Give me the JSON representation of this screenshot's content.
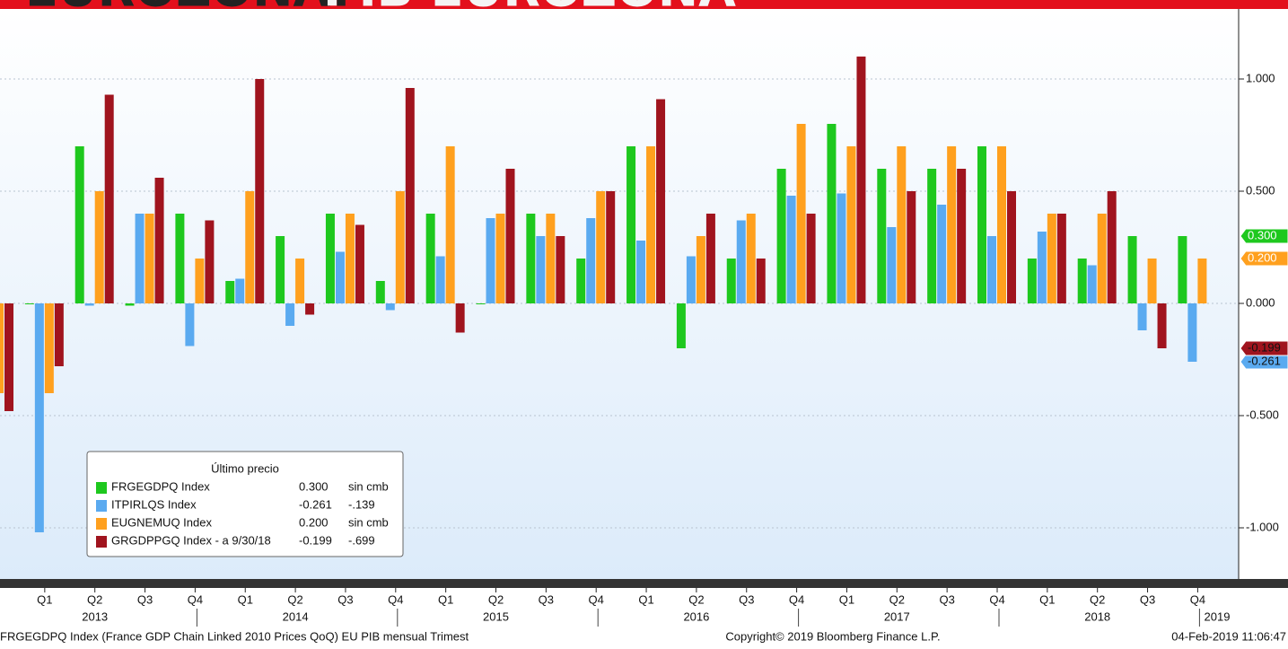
{
  "chart_data": {
    "type": "bar",
    "title": "EUROZONA:",
    "subtitle": "PIB EUROZONA",
    "categories": [
      null,
      "Q1",
      "Q2",
      "Q3",
      "Q4",
      "Q1",
      "Q2",
      "Q3",
      "Q4",
      "Q1",
      "Q2",
      "Q3",
      "Q4",
      "Q1",
      "Q2",
      "Q3",
      "Q4",
      "Q1",
      "Q2",
      "Q3",
      "Q4",
      "Q1",
      "Q2",
      "Q3",
      "Q4"
    ],
    "years": [
      "2013",
      "2014",
      "2015",
      "2016",
      "2017",
      "2018",
      "2019"
    ],
    "series": [
      {
        "name": "FRGEGDPQ Index",
        "color": "#1ec81e",
        "last": "0.300",
        "change": "sin cmb",
        "values": [
          null,
          0.0,
          0.7,
          -0.01,
          0.4,
          0.1,
          0.3,
          0.4,
          0.1,
          0.4,
          0.0,
          0.4,
          0.2,
          0.7,
          -0.2,
          0.2,
          0.6,
          0.8,
          0.6,
          0.6,
          0.7,
          0.2,
          0.2,
          0.3,
          0.3
        ]
      },
      {
        "name": "ITPIRLQS Index",
        "color": "#5aaaf0",
        "last": "-0.261",
        "change": "-.139",
        "values": [
          null,
          -1.02,
          -0.01,
          0.4,
          -0.19,
          0.11,
          -0.1,
          0.23,
          -0.03,
          0.21,
          0.38,
          0.3,
          0.38,
          0.28,
          0.21,
          0.37,
          0.48,
          0.49,
          0.34,
          0.44,
          0.3,
          0.32,
          0.17,
          -0.12,
          -0.26
        ]
      },
      {
        "name": "EUGNEMUQ Index",
        "color": "#ffa01e",
        "last": "0.200",
        "change": "sin cmb",
        "values": [
          -0.4,
          -0.4,
          0.5,
          0.4,
          0.2,
          0.5,
          0.2,
          0.4,
          0.5,
          0.7,
          0.4,
          0.4,
          0.5,
          0.7,
          0.3,
          0.4,
          0.8,
          0.7,
          0.7,
          0.7,
          0.7,
          0.4,
          0.4,
          0.2,
          0.2
        ]
      },
      {
        "name": "GRGDPPGQ Index -   a 9/30/18",
        "color": "#a0141e",
        "last": "-0.199",
        "change": "-.699",
        "values": [
          -0.48,
          -0.28,
          0.93,
          0.56,
          0.37,
          1.0,
          -0.05,
          0.35,
          0.96,
          -0.13,
          0.6,
          0.3,
          0.5,
          0.91,
          0.4,
          0.2,
          0.4,
          1.1,
          0.5,
          0.6,
          0.5,
          0.4,
          0.5,
          -0.2,
          null
        ]
      }
    ],
    "legend_title": "Último precio",
    "ylim": [
      -1.228,
      1.312
    ],
    "yticks": [
      {
        "value": -1.0,
        "label": "-1.000"
      },
      {
        "value": -0.5,
        "label": "-0.500"
      },
      {
        "value": 0,
        "label": "0.000"
      },
      {
        "value": 0.5,
        "label": "0.500"
      },
      {
        "value": 1.0,
        "label": "1.000"
      }
    ],
    "grid": true,
    "legend": "lower left",
    "footer_left": "FRGEGDPQ Index (France GDP Chain Linked 2010 Prices QoQ) EU PIB mensual  Trimest",
    "footer_center": "Copyright© 2019 Bloomberg Finance L.P.",
    "footer_right": "04-Feb-2019 11:06:47"
  }
}
